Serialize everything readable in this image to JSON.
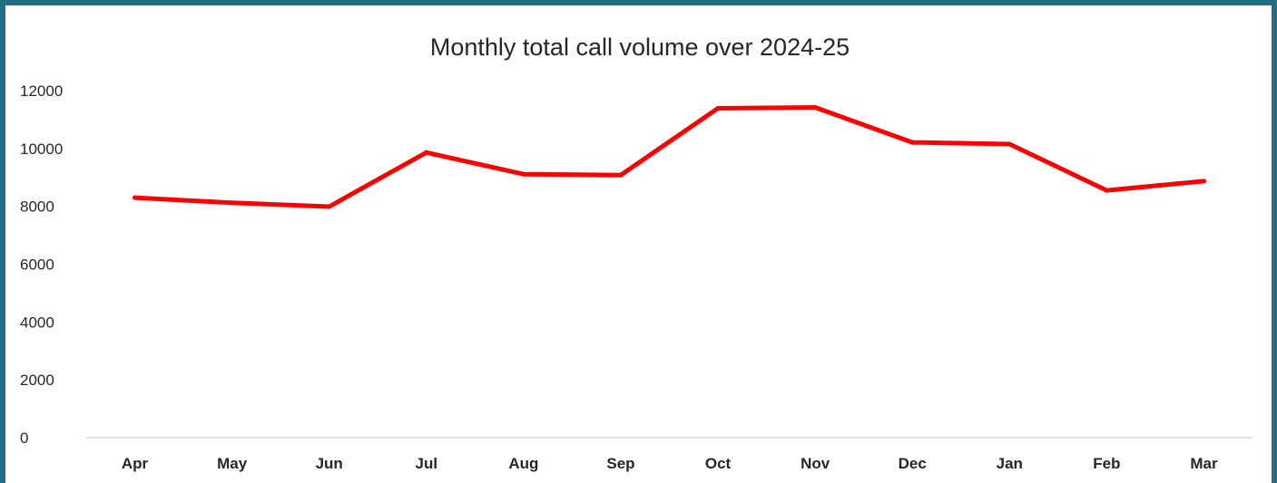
{
  "chart_data": {
    "type": "line",
    "title": "Monthly total call volume over 2024-25",
    "xlabel": "",
    "ylabel": "",
    "categories": [
      "Apr",
      "May",
      "Jun",
      "Jul",
      "Aug",
      "Sep",
      "Oct",
      "Nov",
      "Dec",
      "Jan",
      "Feb",
      "Mar"
    ],
    "series": [
      {
        "values": [
          8300,
          8120,
          7990,
          9860,
          9110,
          9080,
          11390,
          11420,
          10210,
          10150,
          8550,
          8870
        ]
      }
    ],
    "ylim": [
      0,
      12000
    ],
    "yticks": [
      "0",
      "2000",
      "4000",
      "6000",
      "8000",
      "10000",
      "12000"
    ],
    "grid": false,
    "legend": "none",
    "colors": {
      "line": "#ff0000",
      "frame": "#1f6f86",
      "axis": "#d9d9d9"
    }
  }
}
